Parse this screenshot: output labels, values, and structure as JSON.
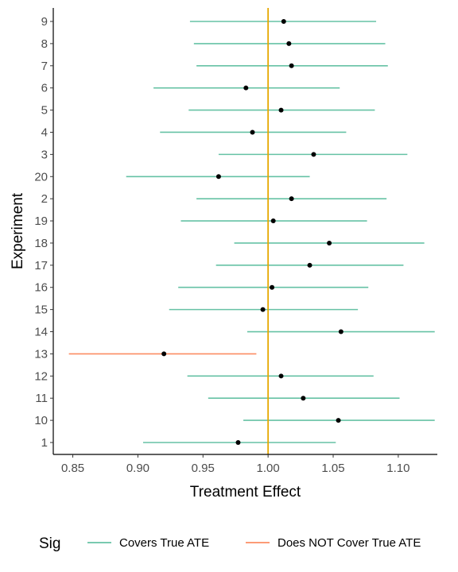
{
  "chart_data": {
    "type": "errorbar",
    "xlabel": "Treatment Effect",
    "ylabel": "Experiment",
    "xlim": [
      0.835,
      1.13
    ],
    "xticks": [
      "0.85",
      "0.90",
      "0.95",
      "1.00",
      "1.05",
      "1.10"
    ],
    "reference_line": {
      "x": 1.0,
      "color": "#E6A800"
    },
    "legend": {
      "position": "bottom",
      "title": "Sig",
      "entries": [
        {
          "label": "Covers True ATE",
          "color": "#66C2A5"
        },
        {
          "label": "Does NOT Cover True ATE",
          "color": "#FC8D62"
        }
      ]
    },
    "grid": false,
    "experiments": [
      {
        "label": "1",
        "estimate": 0.977,
        "lower": 0.904,
        "upper": 1.052,
        "group": "Covers True ATE"
      },
      {
        "label": "10",
        "estimate": 1.054,
        "lower": 0.981,
        "upper": 1.128,
        "group": "Covers True ATE"
      },
      {
        "label": "11",
        "estimate": 1.027,
        "lower": 0.954,
        "upper": 1.101,
        "group": "Covers True ATE"
      },
      {
        "label": "12",
        "estimate": 1.01,
        "lower": 0.938,
        "upper": 1.081,
        "group": "Covers True ATE"
      },
      {
        "label": "13",
        "estimate": 0.92,
        "lower": 0.847,
        "upper": 0.991,
        "group": "Does NOT Cover True ATE"
      },
      {
        "label": "14",
        "estimate": 1.056,
        "lower": 0.984,
        "upper": 1.128,
        "group": "Covers True ATE"
      },
      {
        "label": "15",
        "estimate": 0.996,
        "lower": 0.924,
        "upper": 1.069,
        "group": "Covers True ATE"
      },
      {
        "label": "16",
        "estimate": 1.003,
        "lower": 0.931,
        "upper": 1.077,
        "group": "Covers True ATE"
      },
      {
        "label": "17",
        "estimate": 1.032,
        "lower": 0.96,
        "upper": 1.104,
        "group": "Covers True ATE"
      },
      {
        "label": "18",
        "estimate": 1.047,
        "lower": 0.974,
        "upper": 1.12,
        "group": "Covers True ATE"
      },
      {
        "label": "19",
        "estimate": 1.004,
        "lower": 0.933,
        "upper": 1.076,
        "group": "Covers True ATE"
      },
      {
        "label": "2",
        "estimate": 1.018,
        "lower": 0.945,
        "upper": 1.091,
        "group": "Covers True ATE"
      },
      {
        "label": "20",
        "estimate": 0.962,
        "lower": 0.891,
        "upper": 1.032,
        "group": "Covers True ATE"
      },
      {
        "label": "3",
        "estimate": 1.035,
        "lower": 0.962,
        "upper": 1.107,
        "group": "Covers True ATE"
      },
      {
        "label": "4",
        "estimate": 0.988,
        "lower": 0.917,
        "upper": 1.06,
        "group": "Covers True ATE"
      },
      {
        "label": "5",
        "estimate": 1.01,
        "lower": 0.939,
        "upper": 1.082,
        "group": "Covers True ATE"
      },
      {
        "label": "6",
        "estimate": 0.983,
        "lower": 0.912,
        "upper": 1.055,
        "group": "Covers True ATE"
      },
      {
        "label": "7",
        "estimate": 1.018,
        "lower": 0.945,
        "upper": 1.092,
        "group": "Covers True ATE"
      },
      {
        "label": "8",
        "estimate": 1.016,
        "lower": 0.943,
        "upper": 1.09,
        "group": "Covers True ATE"
      },
      {
        "label": "9",
        "estimate": 1.012,
        "lower": 0.94,
        "upper": 1.083,
        "group": "Covers True ATE"
      }
    ]
  }
}
